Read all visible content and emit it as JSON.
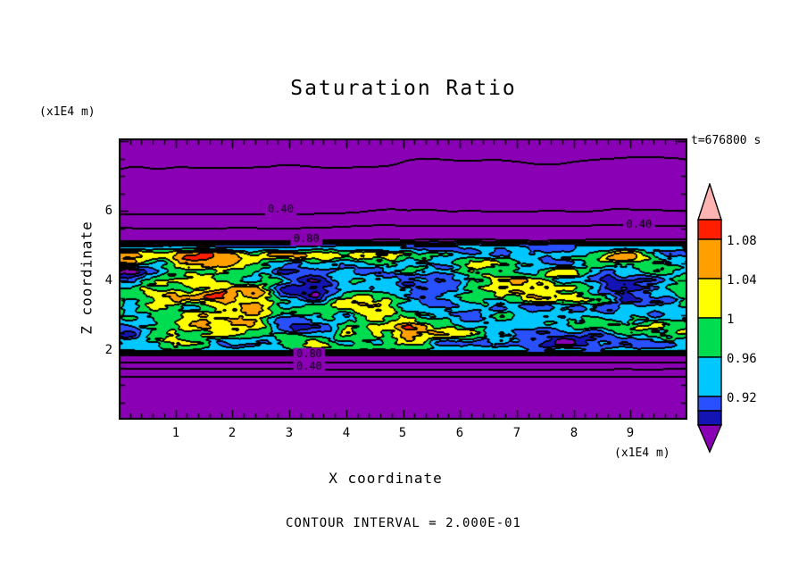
{
  "chart_data": {
    "type": "heatmap",
    "title": "Saturation Ratio",
    "xlabel": "X coordinate",
    "ylabel": "Z coordinate",
    "x_unit": "(x1E4 m)",
    "z_unit": "(x1E4 m)",
    "time_label": "t=676800 s",
    "contour_note": "CONTOUR INTERVAL = 2.000E-01",
    "x_range": [
      0,
      10
    ],
    "z_range": [
      0,
      8.08
    ],
    "x_ticks": [
      "1",
      "2",
      "3",
      "4",
      "5",
      "6",
      "7",
      "8",
      "9"
    ],
    "z_ticks": [
      "2",
      "4",
      "6"
    ],
    "x_minor_step": 0.2,
    "z_minor_step": 0.5,
    "line_interval": 0.2,
    "band_z": [
      1.95,
      5.0
    ],
    "fill_levels": [
      0.84,
      0.88,
      0.92,
      0.96,
      1.0,
      1.04,
      1.08,
      1.12
    ],
    "fill_colors": [
      "#8A00B4",
      "#1414B4",
      "#2850FF",
      "#00C8FF",
      "#00DC50",
      "#FFFF00",
      "#FFA000",
      "#FF1E00",
      "#FFB4B4"
    ],
    "turbulence": {
      "amplitude": 0.185,
      "scale_x": 0.9,
      "scale_z": 1.9
    },
    "profile": [
      [
        0,
        0.12
      ],
      [
        1.2,
        0.17
      ],
      [
        1.45,
        0.4
      ],
      [
        1.85,
        0.8
      ],
      [
        2.0,
        0.94
      ],
      [
        4.6,
        0.96
      ],
      [
        5.0,
        0.92
      ],
      [
        5.15,
        0.8
      ],
      [
        5.55,
        0.6
      ],
      [
        5.95,
        0.4
      ],
      [
        7.2,
        0.22
      ],
      [
        8.08,
        0.14
      ]
    ],
    "contour_labels": [
      {
        "text": "0.40",
        "x": 2.85,
        "z": 6.02
      },
      {
        "text": "0.40",
        "x": 9.15,
        "z": 5.6
      },
      {
        "text": "0.80",
        "x": 3.3,
        "z": 5.18
      },
      {
        "text": "0.80",
        "x": 3.35,
        "z": 1.88
      },
      {
        "text": "0.40",
        "x": 3.35,
        "z": 1.52
      }
    ],
    "colorbar": {
      "labels": [
        "1.08",
        "1.04",
        "1",
        "0.96",
        "0.92"
      ],
      "over_color": "#FFB4B4",
      "under_color": "#8A00B4",
      "segments_top_to_bottom": [
        "#FF1E00",
        "#FFA000",
        "#FFFF00",
        "#00DC50",
        "#00C8FF",
        "#2850FF",
        "#1414B4"
      ]
    }
  }
}
